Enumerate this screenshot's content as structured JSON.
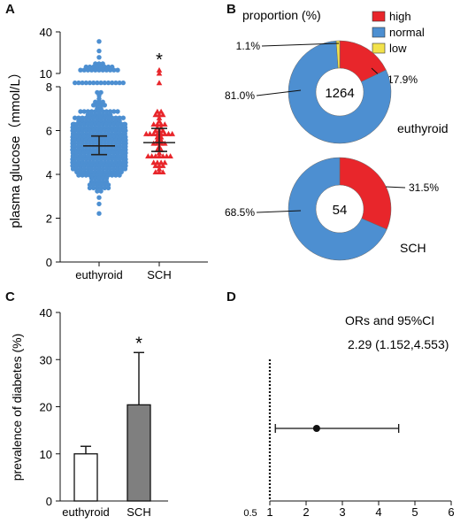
{
  "panels": {
    "a": "A",
    "b": "B",
    "c": "C",
    "d": "D"
  },
  "colors": {
    "blue": "#4d8fd1",
    "red": "#e8262b",
    "yellow": "#f2e24b",
    "gray": "#7f7f7f"
  },
  "chart_data": [
    {
      "panel": "A",
      "type": "scatter",
      "ylabel": "plasma glucose（mmol/L）",
      "categories": [
        "euthyroid",
        "SCH"
      ],
      "yticks": [
        "0",
        "2",
        "4",
        "6",
        "8",
        "10",
        "40"
      ],
      "broken_axis": {
        "lower": [
          0,
          8
        ],
        "upper": [
          10,
          40
        ]
      },
      "groups": [
        {
          "category": "euthyroid",
          "color": "#4d8fd1",
          "marker": "circle",
          "n": 1264,
          "median": 5.3,
          "iqr": [
            4.9,
            5.75
          ],
          "min": 2.1,
          "max": 33
        },
        {
          "category": "SCH",
          "color": "#e8262b",
          "marker": "triangle",
          "n": 54,
          "median": 5.45,
          "iqr": [
            5.05,
            6.1
          ],
          "min": 4.0,
          "max": 12
        }
      ],
      "annotations": [
        {
          "text": "*",
          "category": "SCH"
        }
      ]
    },
    {
      "panel": "B",
      "type": "pie",
      "title": "proportion (%)",
      "legend": [
        {
          "name": "high",
          "color": "#e8262b"
        },
        {
          "name": "normal",
          "color": "#4d8fd1"
        },
        {
          "name": "low",
          "color": "#f2e24b"
        }
      ],
      "legend_position": "top-right",
      "charts": [
        {
          "group": "euthyroid",
          "center_label": "1264",
          "slices": [
            {
              "name": "high",
              "value": 17.9,
              "label": "17.9%"
            },
            {
              "name": "normal",
              "value": 81.0,
              "label": "81.0%"
            },
            {
              "name": "low",
              "value": 1.1,
              "label": "1.1%"
            }
          ]
        },
        {
          "group": "SCH",
          "center_label": "54",
          "slices": [
            {
              "name": "high",
              "value": 31.5,
              "label": "31.5%"
            },
            {
              "name": "normal",
              "value": 68.5,
              "label": "68.5%"
            }
          ]
        }
      ]
    },
    {
      "panel": "C",
      "type": "bar",
      "ylabel": "prevalence of diabetes (%)",
      "categories": [
        "euthyroid",
        "SCH"
      ],
      "values": [
        10.0,
        20.4
      ],
      "errors": [
        1.6,
        11.1
      ],
      "colors": [
        "#ffffff",
        "#7f7f7f"
      ],
      "ylim": [
        0,
        40
      ],
      "yticks": [
        "0",
        "10",
        "20",
        "30",
        "40"
      ],
      "annotations": [
        {
          "text": "*",
          "category": "SCH"
        }
      ]
    },
    {
      "panel": "D",
      "type": "scatter",
      "title": "ORs and 95%CI",
      "estimate_label": "2.29 (1.152,4.553)",
      "estimate": 2.29,
      "ci": [
        1.152,
        4.553
      ],
      "reference": 1,
      "xlim": [
        0.5,
        6
      ],
      "xticks": [
        "0.5",
        "1",
        "2",
        "3",
        "4",
        "5",
        "6"
      ]
    }
  ]
}
